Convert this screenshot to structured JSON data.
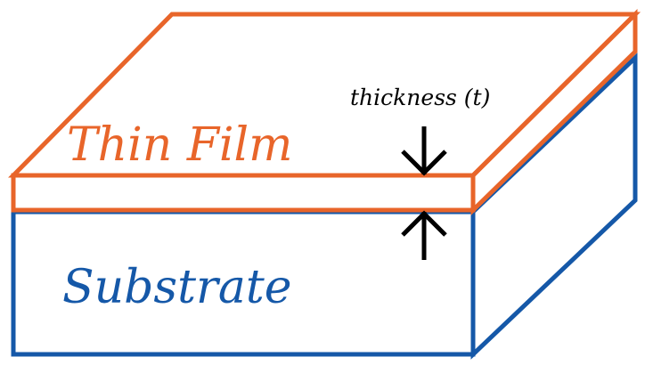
{
  "labels": {
    "film": "Thin Film",
    "substrate": "Substrate",
    "thickness": "thickness (t)"
  },
  "colors": {
    "film": "#E8652A",
    "substrate": "#1558A8",
    "arrow": "#000000",
    "background": "#FFFFFF"
  },
  "icons": {
    "top_arrow": "arrow-down-icon",
    "bottom_arrow": "arrow-up-icon"
  }
}
